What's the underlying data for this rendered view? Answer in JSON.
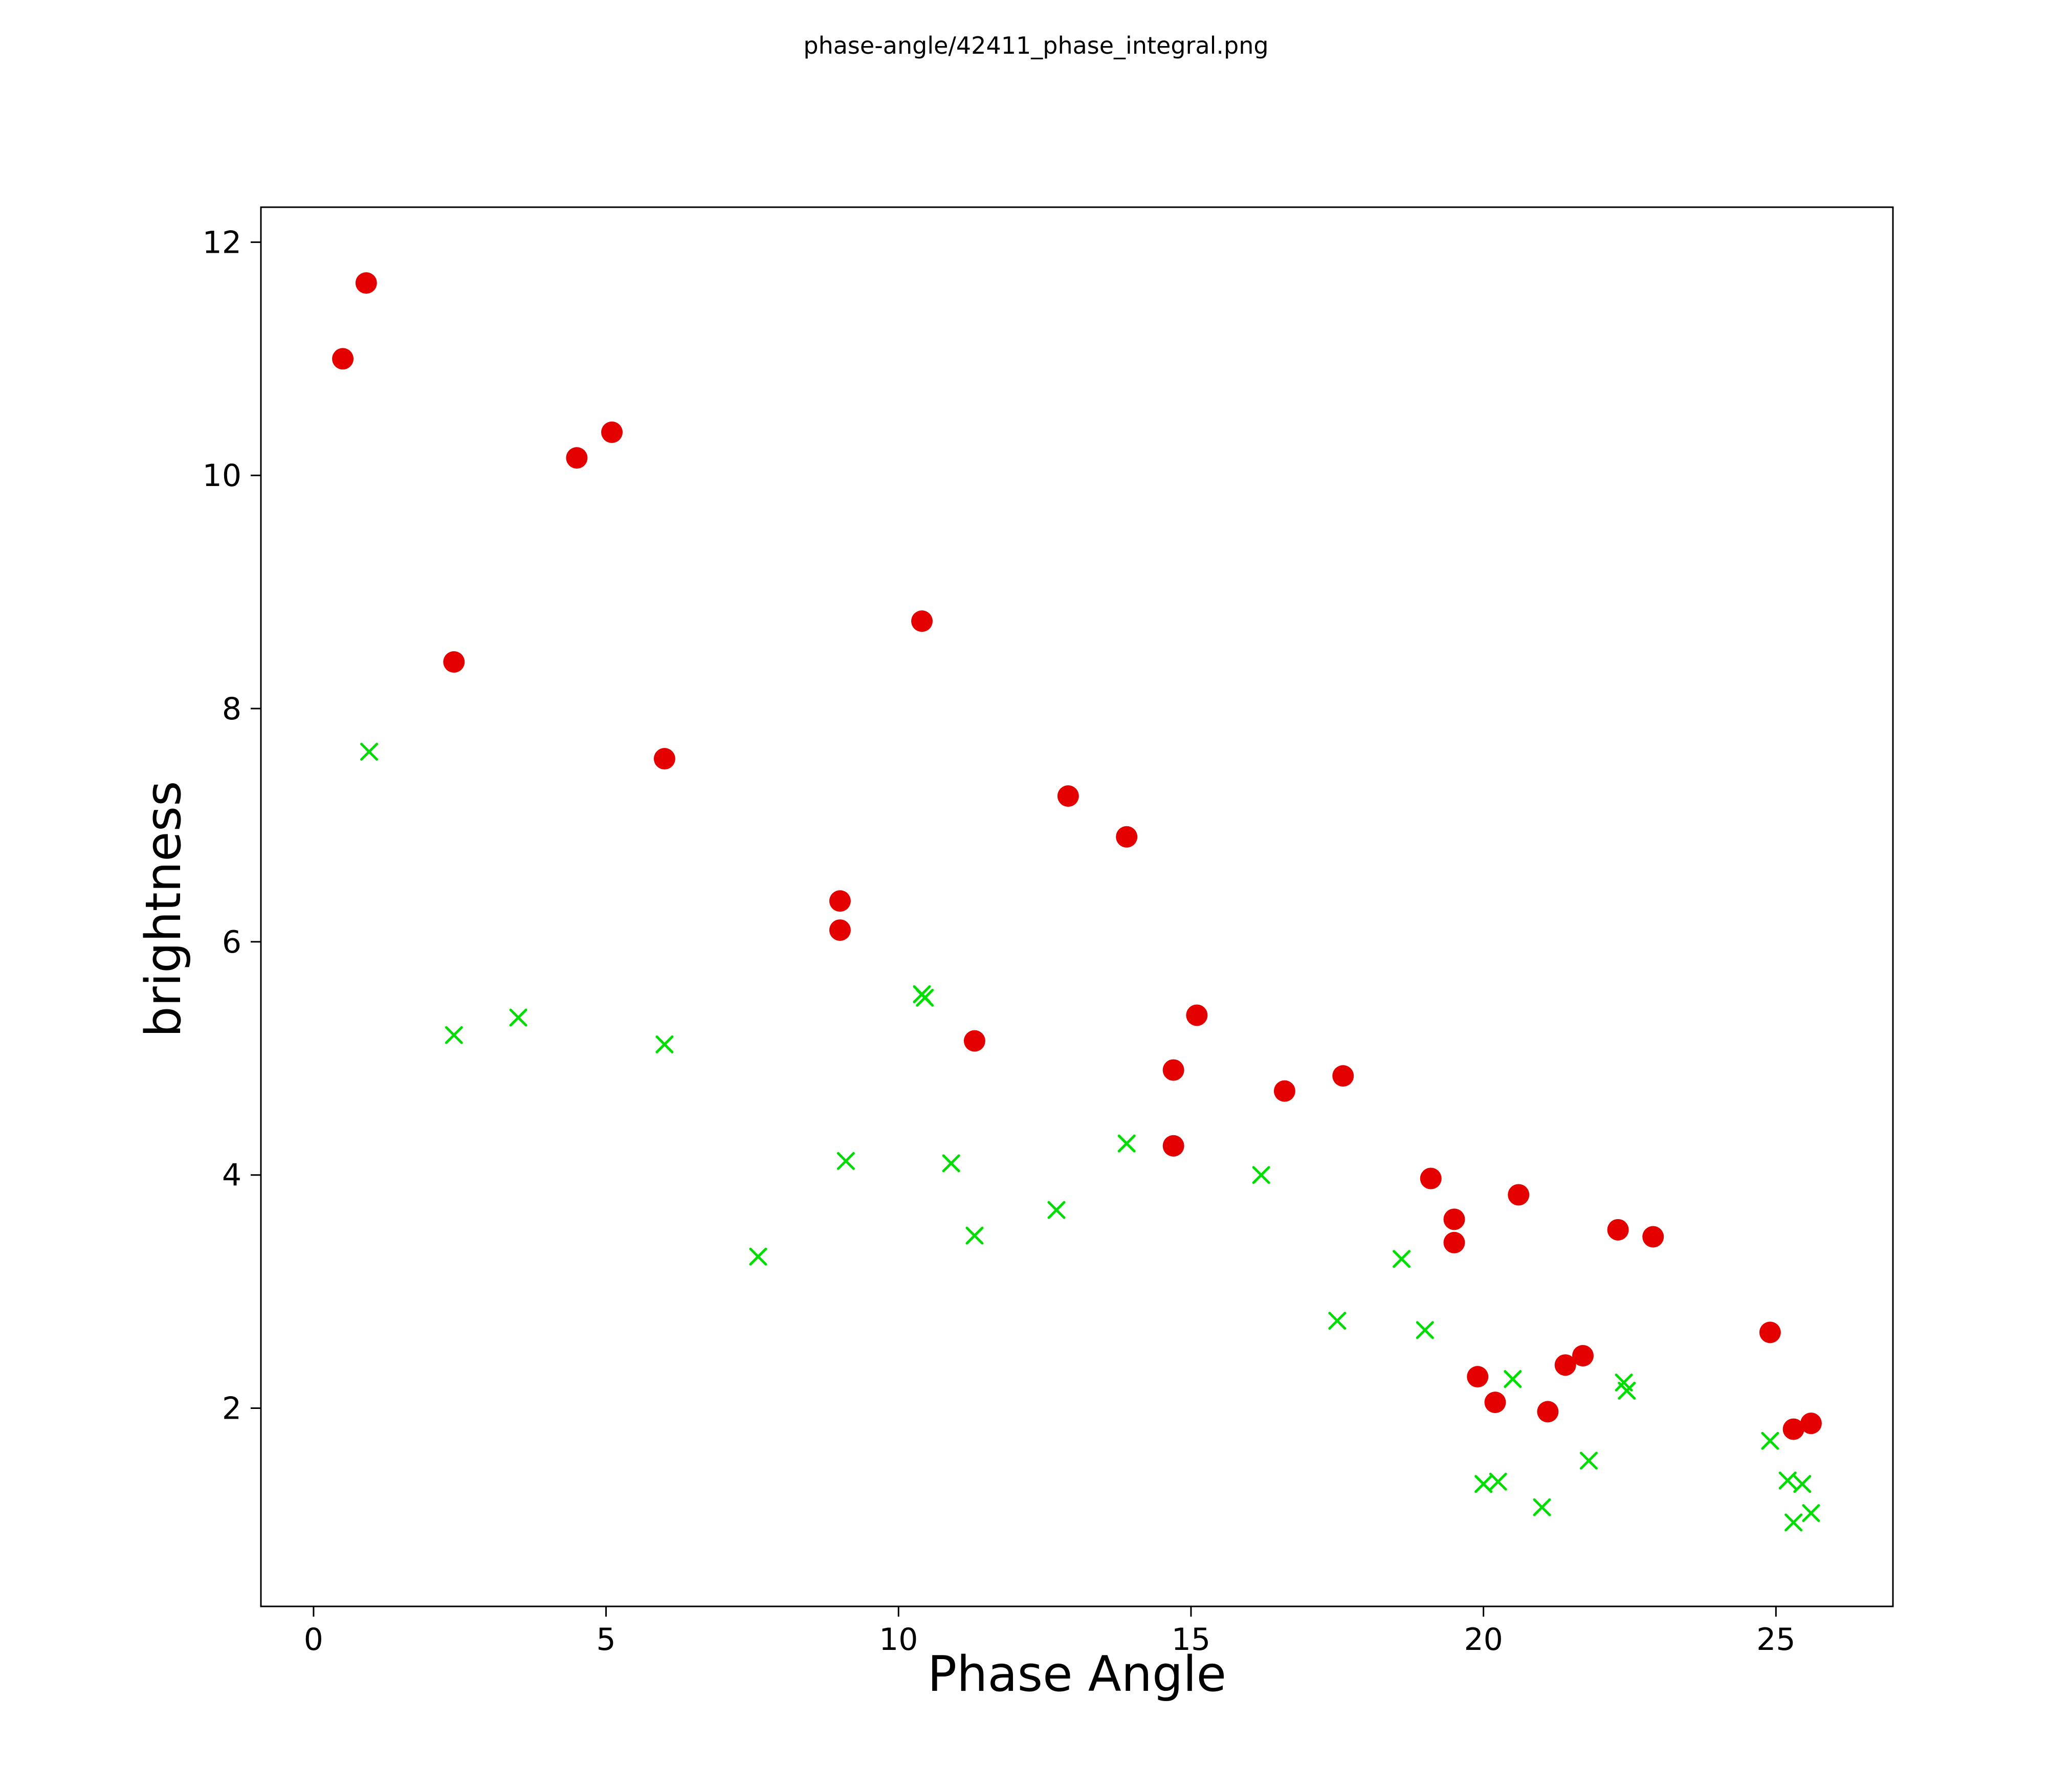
{
  "page": {
    "background_color": "#ffffff",
    "title": "phase-angle/42411_phase_integral.png"
  },
  "chart_data": {
    "type": "scatter",
    "title": "phase-angle/42411_phase_integral.png",
    "xlabel": "Phase Angle",
    "ylabel": "brightness",
    "xlim": [
      -0.9,
      27.0
    ],
    "ylim": [
      0.3,
      12.3
    ],
    "xticks": [
      0,
      5,
      10,
      15,
      20,
      25
    ],
    "yticks": [
      2,
      4,
      6,
      8,
      10,
      12
    ],
    "grid": false,
    "legend_position": "none",
    "frame_color": "#000000",
    "series": [
      {
        "name": "red-circles",
        "marker": "circle",
        "color": "#e50000",
        "marker_size": 21,
        "points": [
          [
            0.5,
            11.0
          ],
          [
            0.9,
            11.65
          ],
          [
            2.4,
            8.4
          ],
          [
            4.5,
            10.15
          ],
          [
            5.1,
            10.37
          ],
          [
            6.0,
            7.57
          ],
          [
            9.0,
            6.35
          ],
          [
            9.0,
            6.1
          ],
          [
            10.4,
            8.75
          ],
          [
            11.3,
            5.15
          ],
          [
            12.9,
            7.25
          ],
          [
            13.9,
            6.9
          ],
          [
            14.7,
            4.9
          ],
          [
            14.7,
            4.25
          ],
          [
            15.1,
            5.37
          ],
          [
            16.6,
            4.72
          ],
          [
            17.6,
            4.85
          ],
          [
            19.1,
            3.97
          ],
          [
            19.5,
            3.62
          ],
          [
            19.5,
            3.42
          ],
          [
            19.9,
            2.27
          ],
          [
            20.2,
            2.05
          ],
          [
            20.6,
            3.83
          ],
          [
            21.1,
            1.97
          ],
          [
            21.4,
            2.37
          ],
          [
            21.7,
            2.45
          ],
          [
            22.3,
            3.53
          ],
          [
            22.9,
            3.47
          ],
          [
            24.9,
            2.65
          ],
          [
            25.3,
            1.82
          ],
          [
            25.6,
            1.87
          ]
        ]
      },
      {
        "name": "green-crosses",
        "marker": "x",
        "color": "#00dd00",
        "marker_size": 15,
        "points": [
          [
            0.95,
            7.63
          ],
          [
            2.4,
            5.2
          ],
          [
            3.5,
            5.35
          ],
          [
            6.0,
            5.12
          ],
          [
            7.6,
            3.3
          ],
          [
            9.1,
            4.12
          ],
          [
            10.4,
            5.55
          ],
          [
            10.45,
            5.52
          ],
          [
            10.9,
            4.1
          ],
          [
            11.3,
            3.48
          ],
          [
            12.7,
            3.7
          ],
          [
            13.9,
            4.27
          ],
          [
            16.2,
            4.0
          ],
          [
            17.5,
            2.75
          ],
          [
            18.6,
            3.28
          ],
          [
            19.0,
            2.67
          ],
          [
            20.0,
            1.35
          ],
          [
            20.25,
            1.37
          ],
          [
            20.5,
            2.25
          ],
          [
            21.0,
            1.15
          ],
          [
            21.8,
            1.55
          ],
          [
            22.4,
            2.22
          ],
          [
            22.45,
            2.15
          ],
          [
            24.9,
            1.72
          ],
          [
            25.2,
            1.38
          ],
          [
            25.45,
            1.35
          ],
          [
            25.3,
            1.02
          ],
          [
            25.6,
            1.1
          ]
        ]
      }
    ]
  }
}
